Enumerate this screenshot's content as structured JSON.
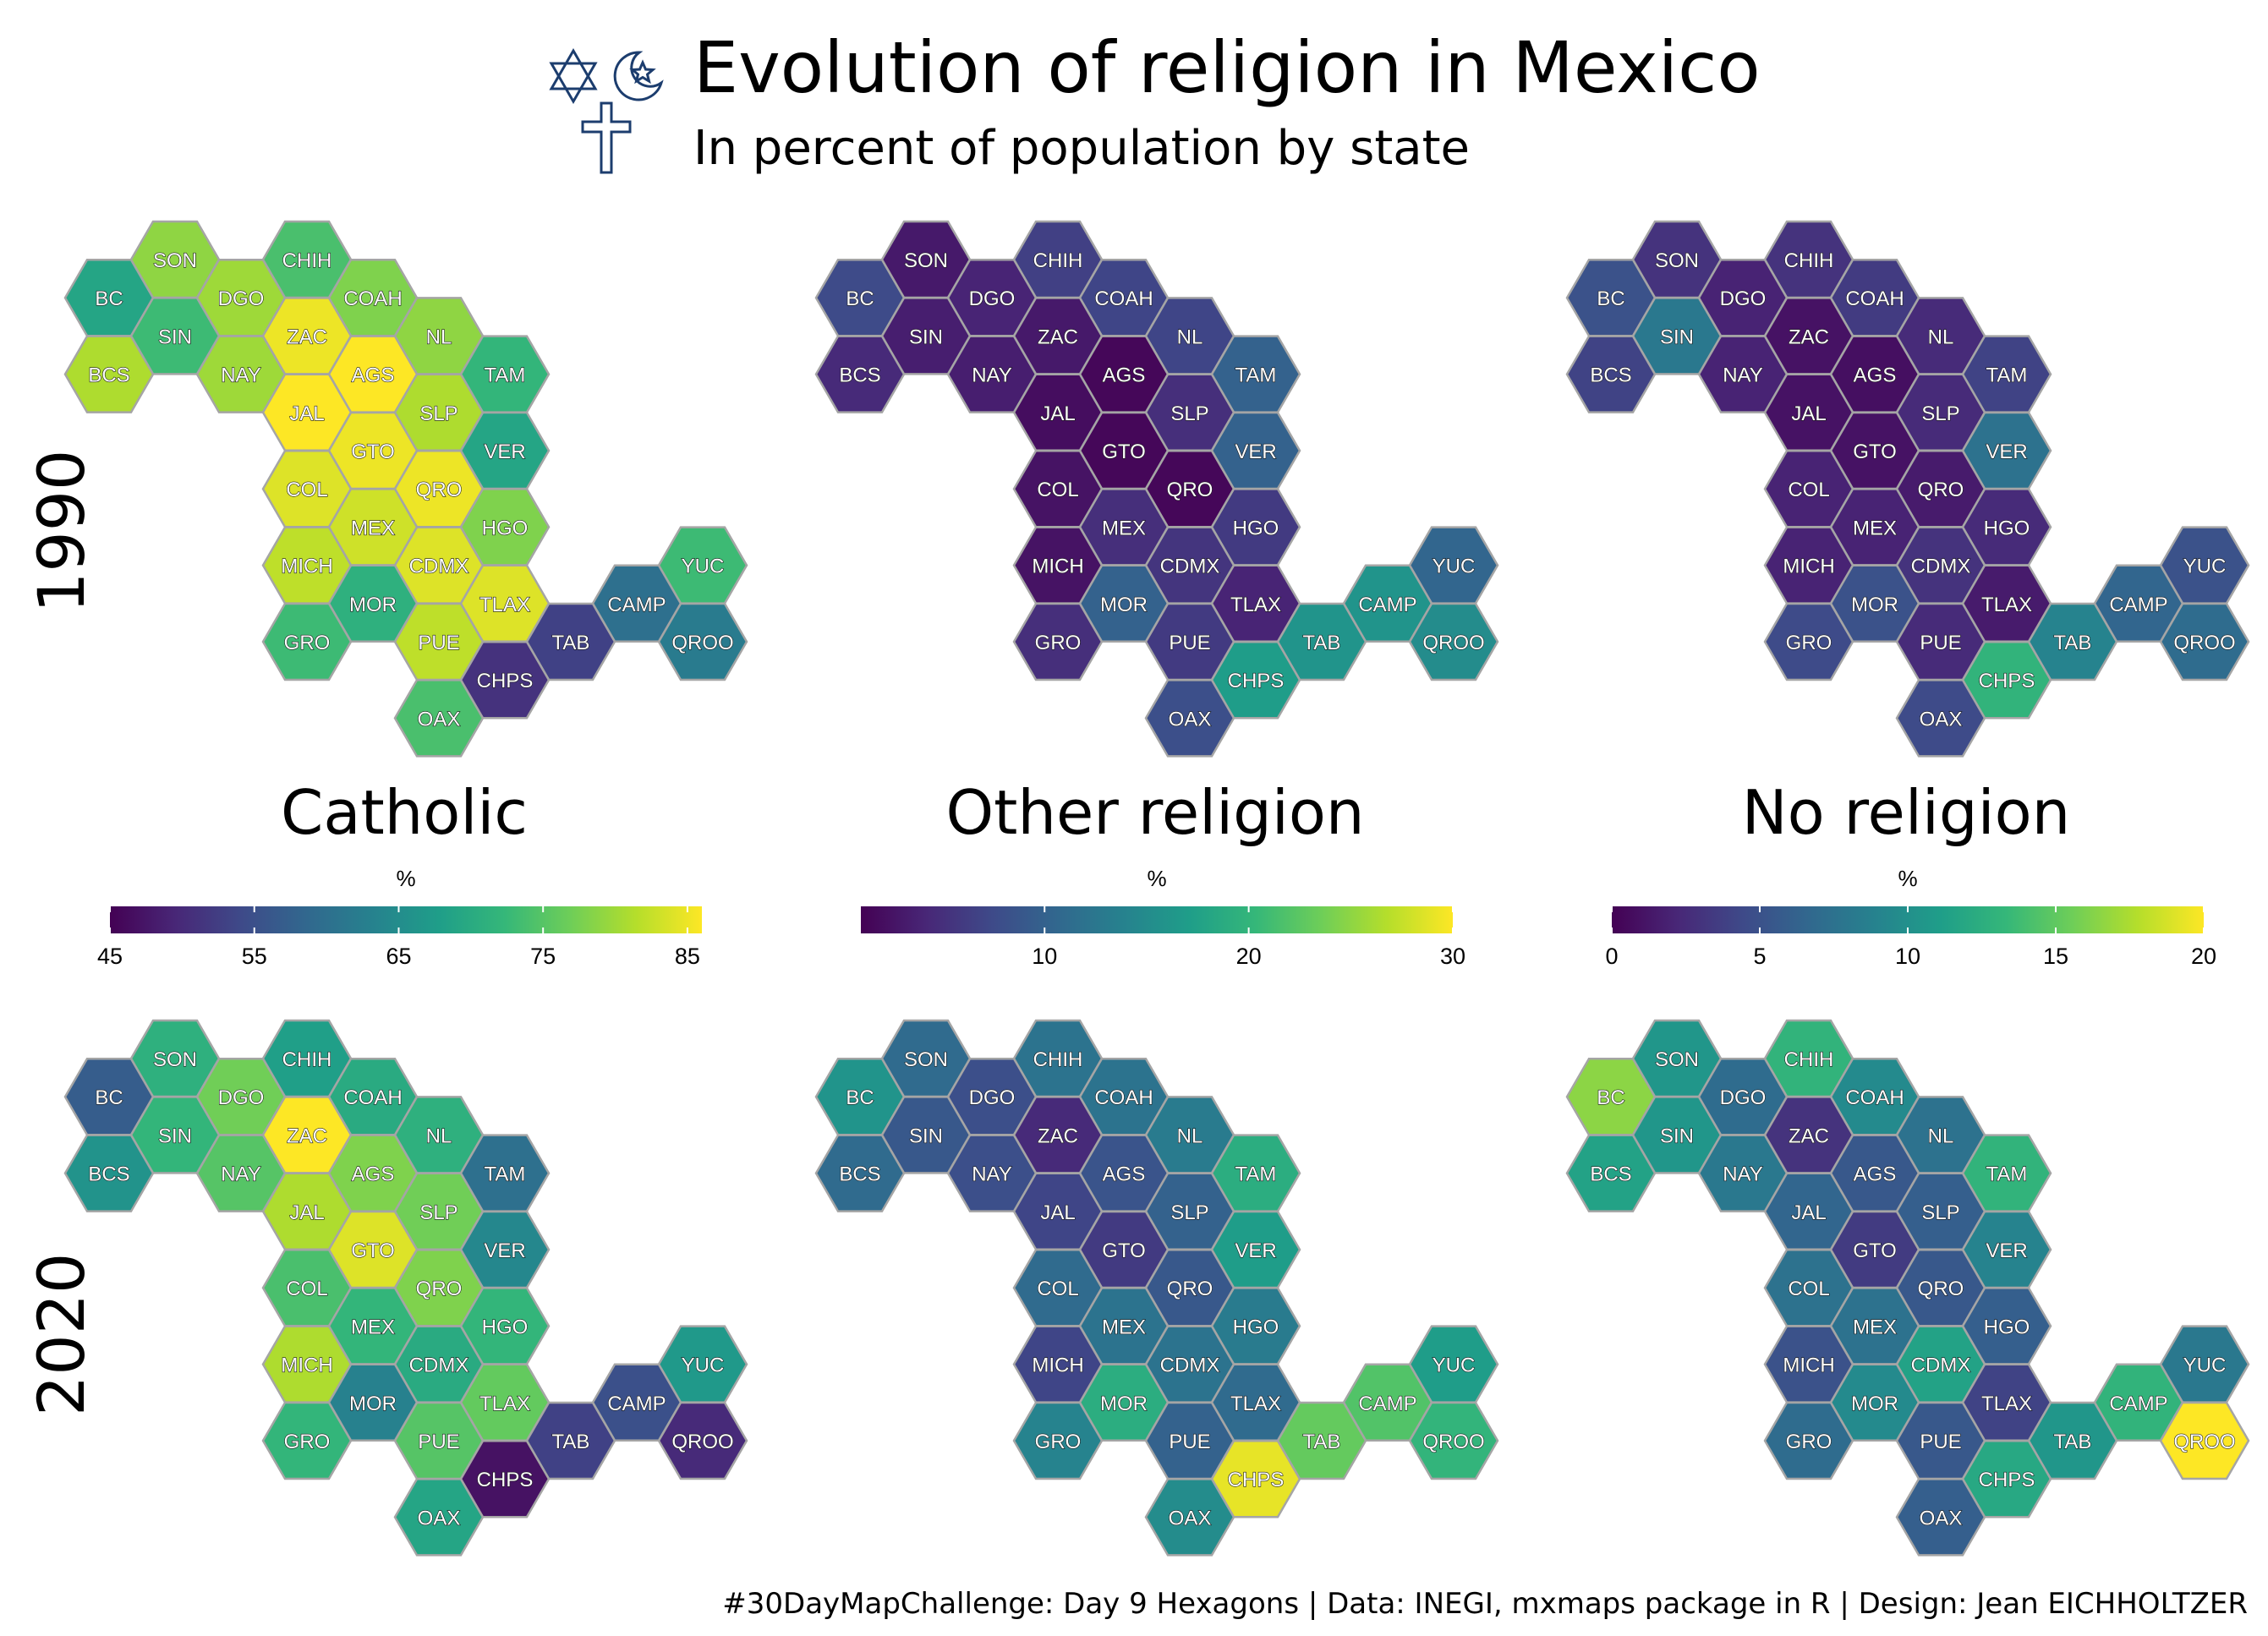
{
  "title": "Evolution of religion in Mexico",
  "subtitle": "In percent of population by state",
  "caption": "#30DayMapChallenge: Day 9 Hexagons | Data: INEGI, mxmaps package in R | Design: Jean EICHHOLTZER",
  "icons": [
    "star-of-david-icon",
    "star-and-crescent-icon",
    "cross-icon"
  ],
  "years": [
    "1990",
    "2020"
  ],
  "palette": "viridis",
  "viridis_stops": [
    "#440154",
    "#482777",
    "#3e4a89",
    "#31688e",
    "#26828e",
    "#1f9e89",
    "#35b779",
    "#6ece58",
    "#b5de2b",
    "#fde725"
  ],
  "chart_data": {
    "type": "heatmap",
    "states": [
      {
        "code": "BC",
        "col": 0,
        "row": 1
      },
      {
        "code": "SON",
        "col": 1,
        "row": 0
      },
      {
        "code": "CHIH",
        "col": 3,
        "row": 0
      },
      {
        "code": "SIN",
        "col": 1,
        "row": 2
      },
      {
        "code": "DGO",
        "col": 2,
        "row": 1
      },
      {
        "code": "COAH",
        "col": 4,
        "row": 1
      },
      {
        "code": "BCS",
        "col": 0,
        "row": 3
      },
      {
        "code": "NAY",
        "col": 2,
        "row": 3
      },
      {
        "code": "ZAC",
        "col": 3,
        "row": 2
      },
      {
        "code": "NL",
        "col": 5,
        "row": 2
      },
      {
        "code": "AGS",
        "col": 4,
        "row": 3
      },
      {
        "code": "TAM",
        "col": 6,
        "row": 3
      },
      {
        "code": "JAL",
        "col": 3,
        "row": 4
      },
      {
        "code": "SLP",
        "col": 5,
        "row": 4
      },
      {
        "code": "GTO",
        "col": 4,
        "row": 5
      },
      {
        "code": "VER",
        "col": 6,
        "row": 5
      },
      {
        "code": "COL",
        "col": 3,
        "row": 6
      },
      {
        "code": "QRO",
        "col": 5,
        "row": 6
      },
      {
        "code": "MEX",
        "col": 4,
        "row": 7
      },
      {
        "code": "HGO",
        "col": 6,
        "row": 7
      },
      {
        "code": "MICH",
        "col": 3,
        "row": 8
      },
      {
        "code": "CDMX",
        "col": 5,
        "row": 8
      },
      {
        "code": "YUC",
        "col": 9,
        "row": 8
      },
      {
        "code": "MOR",
        "col": 4,
        "row": 9
      },
      {
        "code": "TLAX",
        "col": 6,
        "row": 9
      },
      {
        "code": "CAMP",
        "col": 8,
        "row": 9
      },
      {
        "code": "GRO",
        "col": 3,
        "row": 10
      },
      {
        "code": "PUE",
        "col": 5,
        "row": 10
      },
      {
        "code": "TAB",
        "col": 7,
        "row": 10
      },
      {
        "code": "QROO",
        "col": 9,
        "row": 10
      },
      {
        "code": "CHPS",
        "col": 6,
        "row": 11
      },
      {
        "code": "OAX",
        "col": 5,
        "row": 12
      }
    ],
    "panels": [
      {
        "name": "Catholic",
        "unit": "%",
        "scale_min": 45,
        "scale_max": 86,
        "ticks": [
          45,
          55,
          65,
          75,
          85
        ],
        "values": {
          "1990": {
            "BC": 69,
            "SON": 79,
            "CHIH": 74,
            "SIN": 73,
            "DGO": 80,
            "COAH": 78,
            "BCS": 81,
            "NAY": 80,
            "ZAC": 85,
            "NL": 79,
            "AGS": 86,
            "TAM": 72,
            "JAL": 86,
            "SLP": 81,
            "GTO": 85,
            "VER": 69,
            "COL": 84,
            "QRO": 85,
            "MEX": 83,
            "HGO": 78,
            "MICH": 82,
            "CDMX": 84,
            "YUC": 73,
            "MOR": 71,
            "TLAX": 84,
            "CAMP": 60,
            "GRO": 73,
            "PUE": 82,
            "TAB": 53,
            "QROO": 62,
            "CHPS": 51,
            "OAX": 74
          },
          "2020": {
            "BC": 57,
            "SON": 71,
            "CHIH": 68,
            "SIN": 72,
            "DGO": 77,
            "COAH": 70,
            "BCS": 66,
            "NAY": 75,
            "ZAC": 86,
            "NL": 71,
            "AGS": 78,
            "TAM": 60,
            "JAL": 81,
            "SLP": 77,
            "GTO": 84,
            "VER": 64,
            "COL": 74,
            "QRO": 78,
            "MEX": 72,
            "HGO": 72,
            "MICH": 81,
            "CDMX": 70,
            "YUC": 67,
            "MOR": 63,
            "TLAX": 76,
            "CAMP": 55,
            "GRO": 72,
            "PUE": 75,
            "TAB": 53,
            "QROO": 50,
            "CHPS": 47,
            "OAX": 69
          }
        }
      },
      {
        "name": "Other religion",
        "unit": "%",
        "scale_min": 1,
        "scale_max": 30,
        "ticks": [
          10,
          20,
          30
        ],
        "values": {
          "1990": {
            "BC": 7.5,
            "SON": 3,
            "CHIH": 6.5,
            "SIN": 3.5,
            "DGO": 4,
            "COAH": 7,
            "BCS": 4.5,
            "NAY": 3.5,
            "ZAC": 3,
            "NL": 7,
            "AGS": 1.5,
            "TAM": 10,
            "JAL": 2,
            "SLP": 5,
            "GTO": 1.5,
            "VER": 10,
            "COL": 2.5,
            "QRO": 1.5,
            "MEX": 5,
            "HGO": 6,
            "MICH": 2.5,
            "CDMX": 5.5,
            "YUC": 10.5,
            "MOR": 10,
            "TLAX": 4,
            "CAMP": 16,
            "GRO": 5,
            "PUE": 6,
            "TAB": 16,
            "QROO": 15,
            "CHPS": 17,
            "OAX": 8
          },
          "2020": {
            "BC": 16,
            "SON": 11,
            "CHIH": 12,
            "SIN": 9,
            "DGO": 8,
            "COAH": 12,
            "BCS": 11,
            "NAY": 8,
            "ZAC": 4.5,
            "NL": 13,
            "AGS": 8.5,
            "TAM": 19,
            "JAL": 7,
            "SLP": 10,
            "GTO": 6,
            "VER": 17,
            "COL": 11,
            "QRO": 9,
            "MEX": 12,
            "HGO": 13,
            "MICH": 7,
            "CDMX": 12,
            "YUC": 17,
            "MOR": 19,
            "TLAX": 11,
            "CAMP": 22,
            "GRO": 14,
            "PUE": 10,
            "TAB": 23,
            "QROO": 20,
            "CHPS": 29,
            "OAX": 15
          }
        }
      },
      {
        "name": "No religion",
        "unit": "%",
        "scale_min": 0,
        "scale_max": 20,
        "ticks": [
          0,
          5,
          10,
          15,
          20
        ],
        "values": {
          "1990": {
            "BC": 5,
            "SON": 3,
            "CHIH": 3,
            "SIN": 8,
            "DGO": 2,
            "COAH": 3.5,
            "BCS": 4,
            "NAY": 2,
            "ZAC": 1,
            "NL": 2.5,
            "AGS": 0.8,
            "TAM": 4,
            "JAL": 1,
            "SLP": 2.5,
            "GTO": 1,
            "VER": 7.5,
            "COL": 2,
            "QRO": 1.5,
            "MEX": 2,
            "HGO": 2.5,
            "MICH": 2,
            "CDMX": 3,
            "YUC": 5,
            "MOR": 5,
            "TLAX": 1.5,
            "CAMP": 6.5,
            "GRO": 4.5,
            "PUE": 2.5,
            "TAB": 9,
            "QROO": 7,
            "CHPS": 13,
            "OAX": 4.5
          },
          "2020": {
            "BC": 16.5,
            "SON": 10.5,
            "CHIH": 13,
            "SIN": 10.5,
            "DGO": 7,
            "COAH": 9.5,
            "BCS": 11.5,
            "NAY": 8,
            "ZAC": 3,
            "NL": 7.5,
            "AGS": 5.5,
            "TAM": 13,
            "JAL": 6.5,
            "SLP": 6,
            "GTO": 3.5,
            "VER": 9,
            "COL": 7.5,
            "QRO": 5.5,
            "MEX": 7.5,
            "HGO": 6,
            "MICH": 5,
            "CDMX": 11.5,
            "YUC": 8,
            "MOR": 9.5,
            "TLAX": 4,
            "CAMP": 13,
            "GRO": 7,
            "PUE": 5.5,
            "TAB": 10.5,
            "QROO": 20,
            "CHPS": 12,
            "OAX": 6
          }
        }
      }
    ]
  }
}
